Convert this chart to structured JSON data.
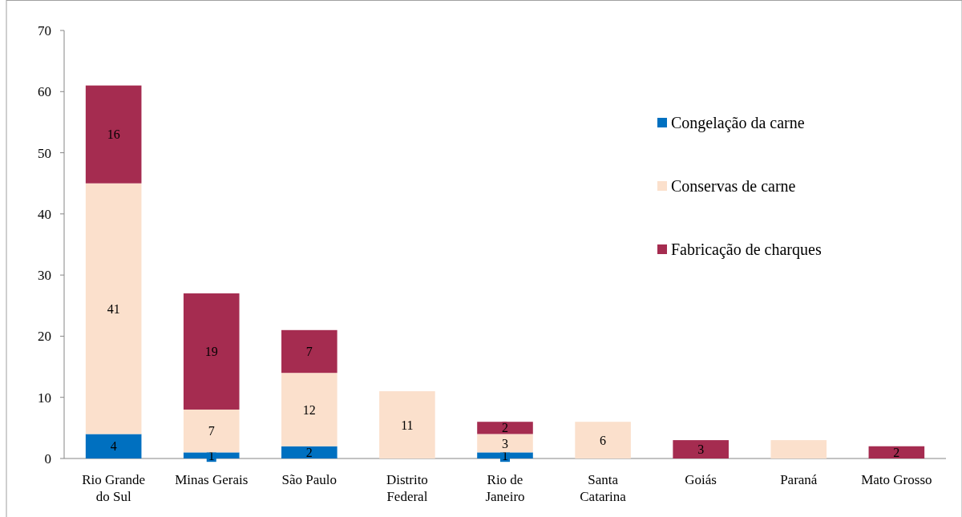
{
  "chart_data": {
    "type": "bar",
    "stacked": true,
    "categories": [
      "Rio Grande\ndo Sul",
      "Minas Gerais",
      "São Paulo",
      "Distrito\nFederal",
      "Rio de\nJaneiro",
      "Santa\nCatarina",
      "Goiás",
      "Paraná",
      "Mato Grosso"
    ],
    "series": [
      {
        "name": "Congelação da carne",
        "color": "#0070c0",
        "values": [
          4,
          1,
          2,
          null,
          1,
          null,
          null,
          null,
          null
        ],
        "value_labels": [
          "4",
          "1",
          "2",
          null,
          "1",
          null,
          null,
          null,
          null
        ]
      },
      {
        "name": "Conservas de carne",
        "color": "#fbe0cc",
        "values": [
          41,
          7,
          12,
          11,
          3,
          6,
          null,
          3,
          null
        ],
        "value_labels": [
          "41",
          "7",
          "12",
          "11",
          "3",
          "6",
          null,
          null,
          null
        ]
      },
      {
        "name": "Fabricação de charques",
        "color": "#a52c50",
        "values": [
          16,
          19,
          7,
          null,
          2,
          null,
          3,
          null,
          2
        ],
        "value_labels": [
          "16",
          "19",
          "7",
          null,
          "2",
          null,
          "3",
          null,
          "2"
        ]
      }
    ],
    "ylim": [
      0,
      70
    ],
    "yticks": [
      0,
      10,
      20,
      30,
      40,
      50,
      60,
      70
    ],
    "grid": false,
    "legend": "right"
  }
}
